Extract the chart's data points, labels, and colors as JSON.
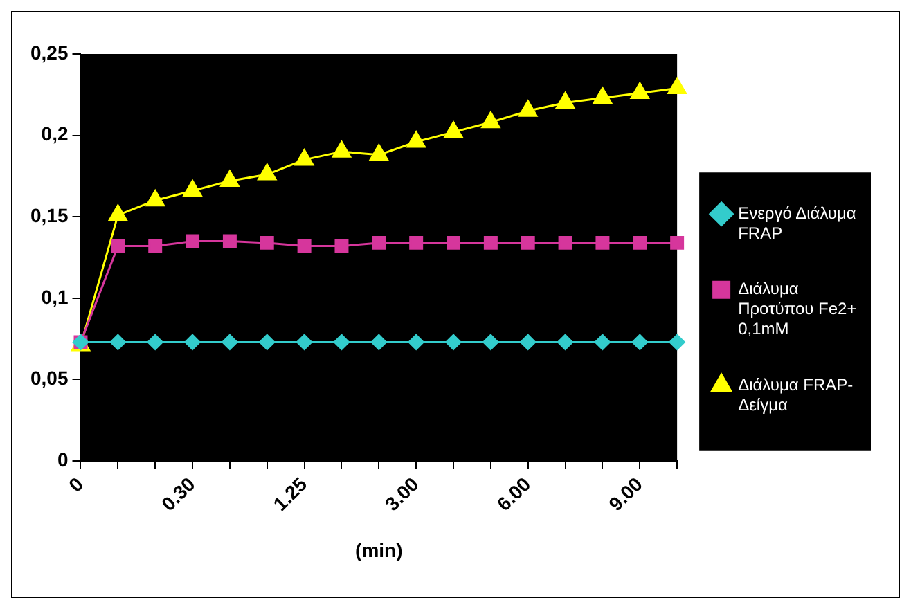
{
  "chart_data": {
    "type": "line",
    "xlabel": "(min)",
    "categories": [
      "0",
      null,
      null,
      "0.30",
      null,
      null,
      "1.25",
      null,
      null,
      "3.00",
      null,
      null,
      "6.00",
      null,
      null,
      "9.00",
      null
    ],
    "series": [
      {
        "name": "Ενεργό Διάλυμα FRAP",
        "color": "#33cccc",
        "marker": "diamond",
        "values": [
          0.073,
          0.073,
          0.073,
          0.073,
          0.073,
          0.073,
          0.073,
          0.073,
          0.073,
          0.073,
          0.073,
          0.073,
          0.073,
          0.073,
          0.073,
          0.073,
          0.073
        ]
      },
      {
        "name": "Διάλυμα Προτύπου Fe2+ 0,1mM",
        "color": "#d6369c",
        "marker": "square",
        "values": [
          0.073,
          0.132,
          0.132,
          0.135,
          0.135,
          0.134,
          0.132,
          0.132,
          0.134,
          0.134,
          0.134,
          0.134,
          0.134,
          0.134,
          0.134,
          0.134,
          0.134
        ]
      },
      {
        "name": "Διάλυμα FRAP-Δείγμα",
        "color": "#ffff00",
        "marker": "triangle",
        "values": [
          0.071,
          0.151,
          0.16,
          0.166,
          0.172,
          0.176,
          0.185,
          0.19,
          0.188,
          0.196,
          0.202,
          0.208,
          0.215,
          0.22,
          0.223,
          0.226,
          0.229
        ]
      }
    ],
    "ylim": [
      0,
      0.25
    ],
    "yticks": [
      {
        "value": 0,
        "label": "0"
      },
      {
        "value": 0.05,
        "label": "0,05"
      },
      {
        "value": 0.1,
        "label": "0,1"
      },
      {
        "value": 0.15,
        "label": "0,15"
      },
      {
        "value": 0.2,
        "label": "0,2"
      },
      {
        "value": 0.25,
        "label": "0,25"
      }
    ],
    "grid": false,
    "legend": "right",
    "line_style": "solid"
  }
}
